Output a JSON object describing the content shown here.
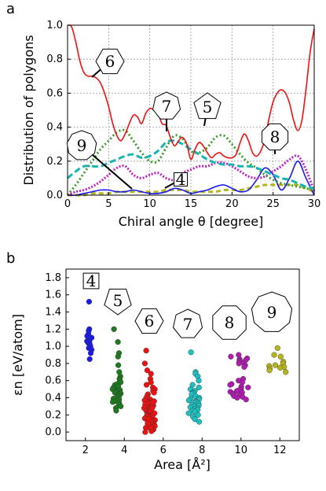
{
  "chart_data": [
    {
      "panel": "a",
      "type": "line",
      "xlabel": "Chiral angle θ [degree]",
      "ylabel": "Distribution of polygons",
      "xlim": [
        0,
        30
      ],
      "ylim": [
        0,
        1.0
      ],
      "xticks": [
        "0",
        "5",
        "10",
        "15",
        "20",
        "25",
        "30"
      ],
      "yticks": [
        "0.0",
        "0.2",
        "0.4",
        "0.6",
        "0.8",
        "1.0"
      ],
      "grid": true,
      "series": [
        {
          "name": "6",
          "color": "#ee1111",
          "dash": "solid",
          "x": [
            0,
            0.5,
            1,
            1.5,
            2,
            2.5,
            3,
            3.5,
            4,
            4.5,
            5,
            5.5,
            6,
            6.5,
            7,
            7.5,
            8,
            8.5,
            9,
            9.5,
            10,
            10.5,
            11,
            11.5,
            12,
            12.5,
            13,
            13.5,
            14,
            14.5,
            15,
            15.5,
            16,
            16.5,
            17,
            17.5,
            18,
            18.5,
            19,
            19.5,
            20,
            20.5,
            21,
            21.5,
            22,
            22.5,
            23,
            23.5,
            24,
            24.5,
            25,
            25.5,
            26,
            26.5,
            27,
            27.5,
            28,
            28.5,
            29,
            29.5,
            30
          ],
          "y": [
            1.0,
            0.99,
            0.9,
            0.79,
            0.72,
            0.7,
            0.7,
            0.69,
            0.66,
            0.6,
            0.52,
            0.42,
            0.35,
            0.32,
            0.36,
            0.42,
            0.47,
            0.46,
            0.42,
            0.48,
            0.51,
            0.5,
            0.48,
            0.42,
            0.41,
            0.34,
            0.29,
            0.32,
            0.34,
            0.3,
            0.21,
            0.27,
            0.31,
            0.29,
            0.25,
            0.22,
            0.24,
            0.25,
            0.23,
            0.22,
            0.22,
            0.24,
            0.31,
            0.36,
            0.32,
            0.25,
            0.23,
            0.26,
            0.33,
            0.45,
            0.55,
            0.6,
            0.62,
            0.6,
            0.54,
            0.44,
            0.38,
            0.44,
            0.62,
            0.84,
            0.98
          ]
        },
        {
          "name": "7",
          "color": "#17b4b4",
          "dash": "8,4",
          "x": [
            0,
            1,
            2,
            3,
            4,
            5,
            6,
            7,
            8,
            9,
            10,
            11,
            12,
            13,
            14,
            15,
            16,
            17,
            18,
            19,
            20,
            21,
            22,
            23,
            24,
            25,
            26,
            27,
            28,
            29,
            30
          ],
          "y": [
            0.1,
            0.14,
            0.17,
            0.17,
            0.17,
            0.19,
            0.21,
            0.23,
            0.24,
            0.22,
            0.23,
            0.26,
            0.31,
            0.32,
            0.3,
            0.27,
            0.24,
            0.21,
            0.19,
            0.18,
            0.18,
            0.17,
            0.17,
            0.16,
            0.14,
            0.12,
            0.1,
            0.09,
            0.07,
            0.05,
            0.04
          ]
        },
        {
          "name": "5",
          "color": "#3c9a2a",
          "dash": "2,3",
          "x": [
            0,
            1,
            2,
            3,
            4,
            5,
            6,
            7,
            8,
            9,
            10,
            11,
            12,
            13,
            14,
            15,
            16,
            17,
            18,
            19,
            20,
            21,
            22,
            23,
            24,
            25,
            26,
            27,
            28,
            29,
            30
          ],
          "y": [
            0.0,
            0.06,
            0.13,
            0.2,
            0.27,
            0.32,
            0.37,
            0.38,
            0.32,
            0.25,
            0.2,
            0.2,
            0.28,
            0.35,
            0.33,
            0.26,
            0.25,
            0.28,
            0.34,
            0.35,
            0.3,
            0.24,
            0.19,
            0.16,
            0.12,
            0.09,
            0.07,
            0.06,
            0.05,
            0.04,
            0.03
          ]
        },
        {
          "name": "8",
          "color": "#c020c0",
          "dash": "2,2",
          "x": [
            0,
            1,
            2,
            3,
            4,
            5,
            6,
            7,
            8,
            9,
            10,
            11,
            12,
            13,
            14,
            15,
            16,
            17,
            18,
            19,
            20,
            21,
            22,
            23,
            24,
            25,
            26,
            27,
            28,
            29,
            30
          ],
          "y": [
            0.0,
            0.02,
            0.03,
            0.05,
            0.08,
            0.12,
            0.16,
            0.17,
            0.12,
            0.1,
            0.12,
            0.13,
            0.1,
            0.09,
            0.13,
            0.15,
            0.17,
            0.17,
            0.19,
            0.19,
            0.17,
            0.14,
            0.11,
            0.1,
            0.11,
            0.14,
            0.17,
            0.21,
            0.23,
            0.15,
            0.02
          ]
        },
        {
          "name": "4",
          "color": "#1a1aee",
          "dash": "solid",
          "x": [
            0,
            1,
            2,
            3,
            4,
            5,
            6,
            7,
            8,
            9,
            10,
            11,
            12,
            13,
            14,
            15,
            16,
            17,
            18,
            19,
            20,
            21,
            22,
            23,
            24,
            25,
            26,
            27,
            28,
            29,
            30
          ],
          "y": [
            0.0,
            0.0,
            0.01,
            0.02,
            0.03,
            0.03,
            0.02,
            0.02,
            0.03,
            0.02,
            0.01,
            0.01,
            0.02,
            0.04,
            0.03,
            0.01,
            0.02,
            0.03,
            0.05,
            0.06,
            0.04,
            0.02,
            0.03,
            0.09,
            0.16,
            0.12,
            0.03,
            0.1,
            0.2,
            0.1,
            0.0
          ]
        },
        {
          "name": "9",
          "color": "#b5b51a",
          "dash": "6,4",
          "x": [
            0,
            1,
            2,
            3,
            4,
            5,
            6,
            7,
            8,
            9,
            10,
            11,
            12,
            13,
            14,
            15,
            16,
            17,
            18,
            19,
            20,
            21,
            22,
            23,
            24,
            25,
            26,
            27,
            28,
            29,
            30
          ],
          "y": [
            0.0,
            0.0,
            0.0,
            0.01,
            0.01,
            0.01,
            0.02,
            0.02,
            0.02,
            0.02,
            0.02,
            0.02,
            0.03,
            0.03,
            0.03,
            0.02,
            0.02,
            0.02,
            0.02,
            0.03,
            0.03,
            0.03,
            0.04,
            0.05,
            0.06,
            0.06,
            0.06,
            0.06,
            0.06,
            0.04,
            0.02
          ]
        }
      ],
      "annotations": [
        "6",
        "7",
        "5",
        "9",
        "4",
        "8"
      ]
    },
    {
      "panel": "b",
      "type": "scatter",
      "xlabel": "Area [Å²]",
      "ylabel": "εn [eV/atom]",
      "xlim": [
        1,
        13
      ],
      "ylim": [
        -0.1,
        1.9
      ],
      "xticks": [
        "2",
        "4",
        "6",
        "8",
        "10",
        "12"
      ],
      "yticks": [
        "0.0",
        "0.2",
        "0.4",
        "0.6",
        "0.8",
        "1.0",
        "1.2",
        "1.4",
        "1.6",
        "1.8"
      ],
      "grid": false,
      "series": [
        {
          "name": "4",
          "color": "#1a1aee",
          "x_center": 2.2,
          "x_spread": 0.12,
          "y": [
            1.52,
            1.2,
            1.18,
            1.14,
            1.12,
            1.1,
            1.08,
            1.06,
            1.05,
            1.04,
            1.02,
            1.0,
            0.98,
            0.96,
            0.92,
            0.85
          ]
        },
        {
          "name": "5",
          "color": "#1e7a1e",
          "x_center": 3.6,
          "x_spread": 0.22,
          "y": [
            1.2,
            1.05,
            0.92,
            0.88,
            0.78,
            0.7,
            0.65,
            0.62,
            0.6,
            0.58,
            0.56,
            0.55,
            0.53,
            0.52,
            0.5,
            0.49,
            0.48,
            0.47,
            0.46,
            0.45,
            0.44,
            0.43,
            0.42,
            0.41,
            0.4,
            0.39,
            0.38,
            0.37,
            0.36,
            0.35,
            0.34,
            0.32,
            0.3,
            0.28,
            0.25
          ]
        },
        {
          "name": "6",
          "color": "#ee1111",
          "x_center": 5.3,
          "x_spread": 0.28,
          "y": [
            0.95,
            0.8,
            0.72,
            0.68,
            0.62,
            0.58,
            0.55,
            0.52,
            0.5,
            0.48,
            0.46,
            0.44,
            0.42,
            0.4,
            0.38,
            0.37,
            0.36,
            0.35,
            0.34,
            0.33,
            0.32,
            0.31,
            0.3,
            0.29,
            0.28,
            0.27,
            0.26,
            0.25,
            0.24,
            0.23,
            0.22,
            0.21,
            0.2,
            0.19,
            0.18,
            0.17,
            0.16,
            0.15,
            0.14,
            0.13,
            0.12,
            0.11,
            0.1,
            0.09,
            0.08,
            0.07,
            0.06,
            0.05,
            0.04,
            0.03,
            0.02,
            0.01,
            0.0,
            0.3,
            0.25,
            0.2,
            0.15,
            0.1,
            0.05,
            0.35,
            0.28,
            0.22
          ]
        },
        {
          "name": "7",
          "color": "#1cc0c0",
          "x_center": 7.6,
          "x_spread": 0.3,
          "y": [
            0.93,
            0.7,
            0.68,
            0.65,
            0.6,
            0.55,
            0.52,
            0.5,
            0.48,
            0.46,
            0.45,
            0.44,
            0.42,
            0.4,
            0.39,
            0.38,
            0.37,
            0.36,
            0.35,
            0.34,
            0.33,
            0.32,
            0.31,
            0.3,
            0.29,
            0.28,
            0.27,
            0.26,
            0.25,
            0.24,
            0.22,
            0.2,
            0.18,
            0.15,
            0.12
          ]
        },
        {
          "name": "8",
          "color": "#b01cb0",
          "x_center": 9.9,
          "x_spread": 0.5,
          "y": [
            0.9,
            0.88,
            0.86,
            0.85,
            0.84,
            0.83,
            0.82,
            0.81,
            0.8,
            0.78,
            0.76,
            0.62,
            0.6,
            0.58,
            0.56,
            0.55,
            0.53,
            0.52,
            0.5,
            0.49,
            0.48,
            0.47,
            0.46,
            0.45,
            0.44,
            0.43,
            0.42,
            0.41,
            0.4,
            0.38
          ]
        },
        {
          "name": "9",
          "color": "#b5b51a",
          "x_center": 11.9,
          "x_spread": 0.45,
          "y": [
            0.98,
            0.9,
            0.88,
            0.82,
            0.8,
            0.78,
            0.77,
            0.76,
            0.75,
            0.74,
            0.72,
            0.7
          ]
        }
      ],
      "annotations": [
        "4",
        "5",
        "6",
        "7",
        "8",
        "9"
      ]
    }
  ],
  "figure": {
    "panel_a_label": "a",
    "panel_b_label": "b"
  }
}
